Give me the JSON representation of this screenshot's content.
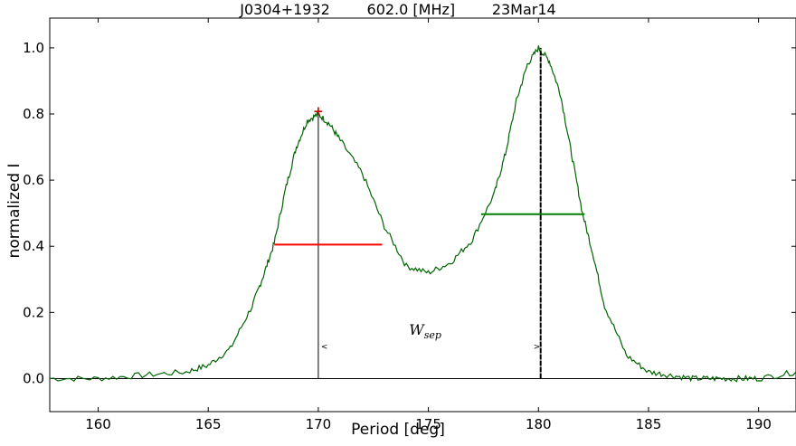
{
  "chart_data": {
    "type": "line",
    "title_parts": [
      "J0304+1932",
      "602.0 [MHz]",
      "23Mar14"
    ],
    "xlabel": "Period [deg]",
    "ylabel": "normalized I",
    "xlim": [
      157.8,
      191.7
    ],
    "ylim": [
      -0.1,
      1.09
    ],
    "xticks": [
      160,
      165,
      170,
      175,
      180,
      185,
      190
    ],
    "yticks": [
      0.0,
      0.2,
      0.4,
      0.6,
      0.8,
      1.0
    ],
    "grid": false,
    "series": [
      {
        "color": "#006400",
        "x": [
          157.8,
          160,
          162,
          164,
          165,
          166,
          167,
          167.5,
          168,
          168.5,
          169,
          169.5,
          170,
          170.5,
          171,
          172,
          173,
          174,
          175,
          176,
          177,
          178,
          178.5,
          179,
          179.5,
          180,
          180.5,
          181,
          181.5,
          182,
          182.5,
          183,
          184,
          185,
          186,
          187,
          188,
          189,
          190,
          191.7
        ],
        "y": [
          0.0,
          0.0,
          0.01,
          0.02,
          0.04,
          0.09,
          0.22,
          0.31,
          0.41,
          0.57,
          0.7,
          0.78,
          0.8,
          0.77,
          0.72,
          0.62,
          0.46,
          0.34,
          0.32,
          0.35,
          0.42,
          0.56,
          0.68,
          0.84,
          0.95,
          1.0,
          0.96,
          0.86,
          0.68,
          0.5,
          0.37,
          0.22,
          0.07,
          0.02,
          0.01,
          0.0,
          0.0,
          0.0,
          0.0,
          0.02
        ]
      }
    ],
    "annotations": {
      "peak1": {
        "x": 170.0,
        "y": 0.81,
        "marker": "+",
        "color": "#cc0000"
      },
      "peak2_x": 180.1,
      "hline1": {
        "x0": 168.0,
        "x1": 172.9,
        "y": 0.405,
        "color": "#ff0000"
      },
      "hline2": {
        "x0": 177.4,
        "x1": 182.1,
        "y": 0.497,
        "color": "#008000"
      },
      "wsep_label": "W",
      "wsep_sub": "sep",
      "wsep_pos": {
        "x": 174.7,
        "y": 0.12
      },
      "arrow_y": 0.1
    }
  }
}
